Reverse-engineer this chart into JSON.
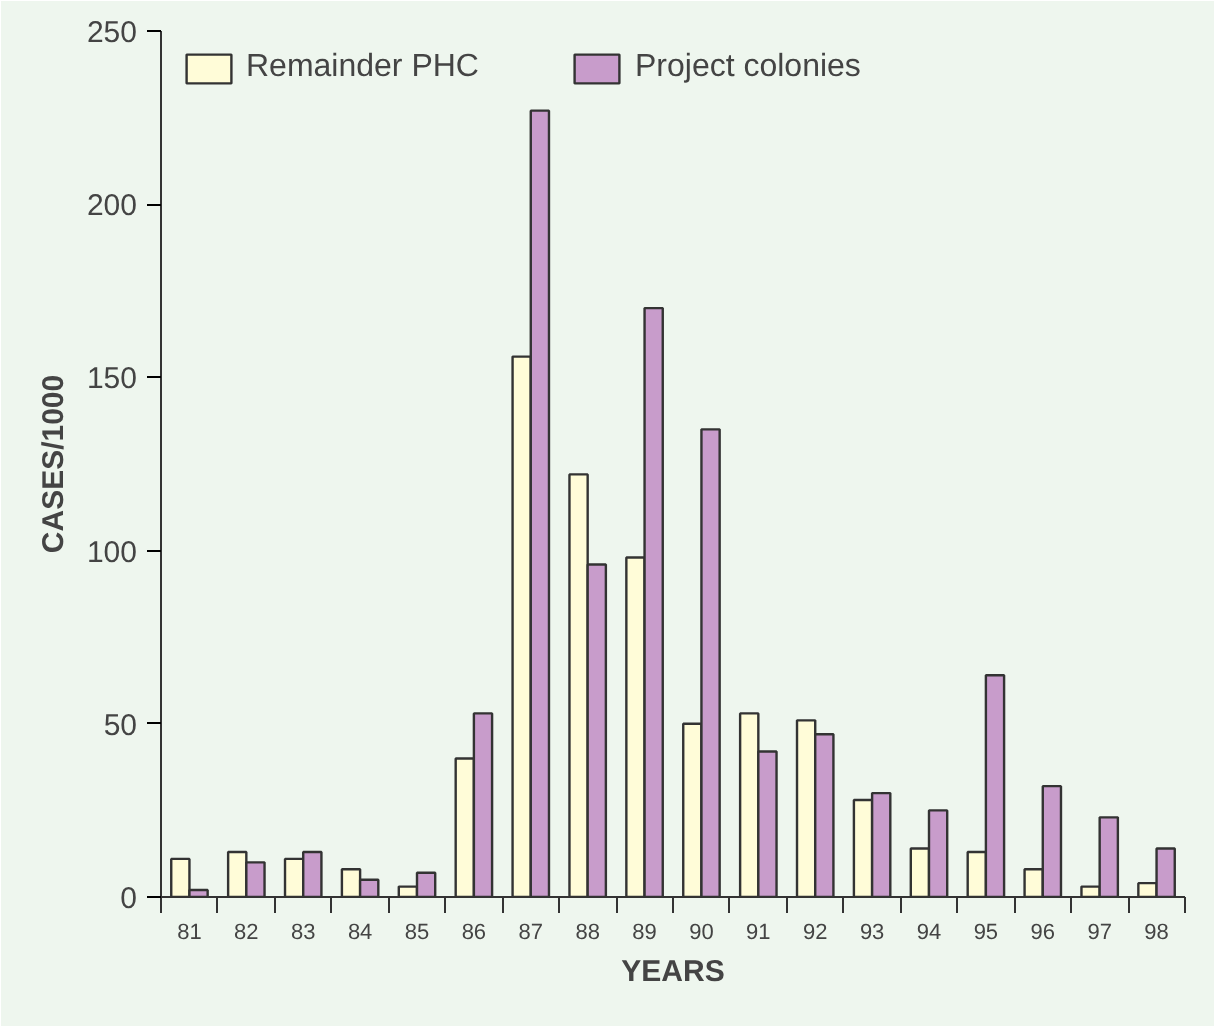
{
  "chart_data": {
    "type": "bar",
    "xlabel": "YEARS",
    "ylabel": "CASES/1000",
    "categories": [
      "81",
      "82",
      "83",
      "84",
      "85",
      "86",
      "87",
      "88",
      "89",
      "90",
      "91",
      "92",
      "93",
      "94",
      "95",
      "96",
      "97",
      "98"
    ],
    "series": [
      {
        "name": "Remainder PHC",
        "color": "#fffcd8",
        "values": [
          11,
          13,
          11,
          8,
          3,
          40,
          156,
          122,
          98,
          50,
          53,
          51,
          28,
          14,
          13,
          8,
          3,
          4
        ]
      },
      {
        "name": "Project colonies",
        "color": "#c89ccb",
        "values": [
          2,
          10,
          13,
          5,
          7,
          53,
          227,
          96,
          170,
          135,
          42,
          47,
          30,
          25,
          64,
          32,
          23,
          14
        ]
      }
    ],
    "ylim": [
      0,
      250
    ],
    "yticks": [
      0,
      50,
      100,
      150,
      200,
      250
    ],
    "grid": false,
    "legend": "top left"
  }
}
